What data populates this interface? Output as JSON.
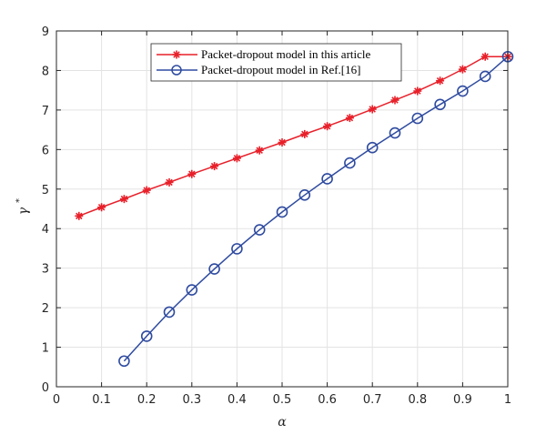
{
  "chart_data": {
    "type": "line",
    "xlabel": "α",
    "ylabel": "γ",
    "ylabel_superscript": "*",
    "xlim": [
      0,
      1
    ],
    "ylim": [
      0,
      9
    ],
    "grid": true,
    "legend_position": "top-center",
    "xticks": [
      "0",
      "0.1",
      "0.2",
      "0.3",
      "0.4",
      "0.5",
      "0.6",
      "0.7",
      "0.8",
      "0.9",
      "1"
    ],
    "yticks": [
      "0",
      "1",
      "2",
      "3",
      "4",
      "5",
      "6",
      "7",
      "8",
      "9"
    ],
    "series": [
      {
        "name": "Packet-dropout model in this article",
        "color": "#e8202a",
        "marker": "asterisk",
        "x": [
          0.05,
          0.1,
          0.15,
          0.2,
          0.25,
          0.3,
          0.35,
          0.4,
          0.45,
          0.5,
          0.55,
          0.6,
          0.65,
          0.7,
          0.75,
          0.8,
          0.85,
          0.9,
          0.95,
          1.0
        ],
        "y": [
          4.32,
          4.54,
          4.75,
          4.97,
          5.17,
          5.38,
          5.58,
          5.78,
          5.98,
          6.18,
          6.39,
          6.59,
          6.8,
          7.02,
          7.25,
          7.48,
          7.74,
          8.03,
          8.35,
          8.35
        ]
      },
      {
        "name": "Packet-dropout model in Ref.[16]",
        "color": "#2f4ba0",
        "marker": "circle",
        "x": [
          0.15,
          0.2,
          0.25,
          0.3,
          0.35,
          0.4,
          0.45,
          0.5,
          0.55,
          0.6,
          0.65,
          0.7,
          0.75,
          0.8,
          0.85,
          0.9,
          0.95,
          1.0
        ],
        "y": [
          0.65,
          1.28,
          1.89,
          2.45,
          2.98,
          3.49,
          3.97,
          4.42,
          4.85,
          5.26,
          5.66,
          6.05,
          6.42,
          6.79,
          7.14,
          7.48,
          7.85,
          8.35
        ]
      }
    ]
  }
}
